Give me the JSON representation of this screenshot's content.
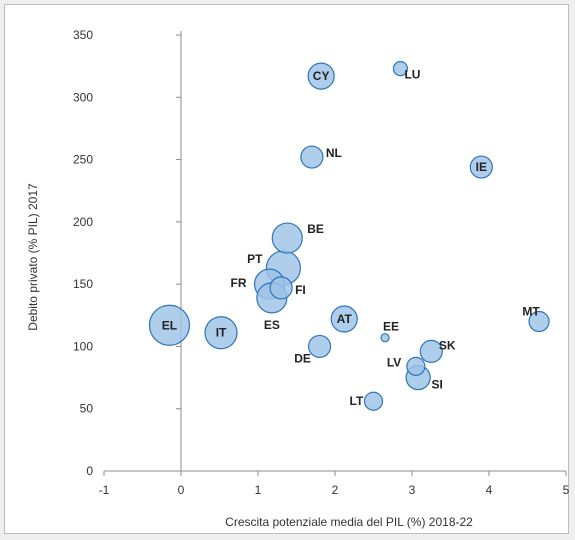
{
  "chart_data": {
    "type": "scatter",
    "subtype": "bubble",
    "title": "",
    "xlabel": "Crescita potenziale media del PIL (%) 2018-22",
    "ylabel": "Debito privato (% PIL) 2017",
    "xlim": [
      -1,
      5
    ],
    "ylim": [
      0,
      350
    ],
    "xticks": [
      "-1",
      "0",
      "1",
      "2",
      "3",
      "4",
      "5"
    ],
    "yticks": [
      "0",
      "50",
      "100",
      "150",
      "200",
      "250",
      "300",
      "350"
    ],
    "grid": false,
    "bubble_color": "#9dc3e6",
    "bubble_edge": "#2e75b6",
    "points": [
      {
        "label": "CY",
        "x": 1.82,
        "y": 317,
        "size": 13
      },
      {
        "label": "LU",
        "x": 2.85,
        "y": 323,
        "size": 7
      },
      {
        "label": "NL",
        "x": 1.7,
        "y": 252,
        "size": 11
      },
      {
        "label": "IE",
        "x": 3.9,
        "y": 244,
        "size": 11
      },
      {
        "label": "BE",
        "x": 1.38,
        "y": 187,
        "size": 15
      },
      {
        "label": "PT",
        "x": 1.33,
        "y": 163,
        "size": 17
      },
      {
        "label": "FR",
        "x": 1.15,
        "y": 150,
        "size": 15
      },
      {
        "label": "FI",
        "x": 1.3,
        "y": 147,
        "size": 11
      },
      {
        "label": "ES",
        "x": 1.18,
        "y": 139,
        "size": 15
      },
      {
        "label": "AT",
        "x": 2.12,
        "y": 122,
        "size": 13
      },
      {
        "label": "EE",
        "x": 2.65,
        "y": 107,
        "size": 4
      },
      {
        "label": "MT",
        "x": 4.65,
        "y": 120,
        "size": 10
      },
      {
        "label": "EL",
        "x": -0.15,
        "y": 117,
        "size": 20
      },
      {
        "label": "IT",
        "x": 0.52,
        "y": 111,
        "size": 16
      },
      {
        "label": "SK",
        "x": 3.25,
        "y": 96,
        "size": 11
      },
      {
        "label": "DE",
        "x": 1.8,
        "y": 100,
        "size": 11
      },
      {
        "label": "LV",
        "x": 3.05,
        "y": 84,
        "size": 9
      },
      {
        "label": "SI",
        "x": 3.08,
        "y": 75,
        "size": 12
      },
      {
        "label": "LT",
        "x": 2.5,
        "y": 56,
        "size": 9
      }
    ]
  }
}
